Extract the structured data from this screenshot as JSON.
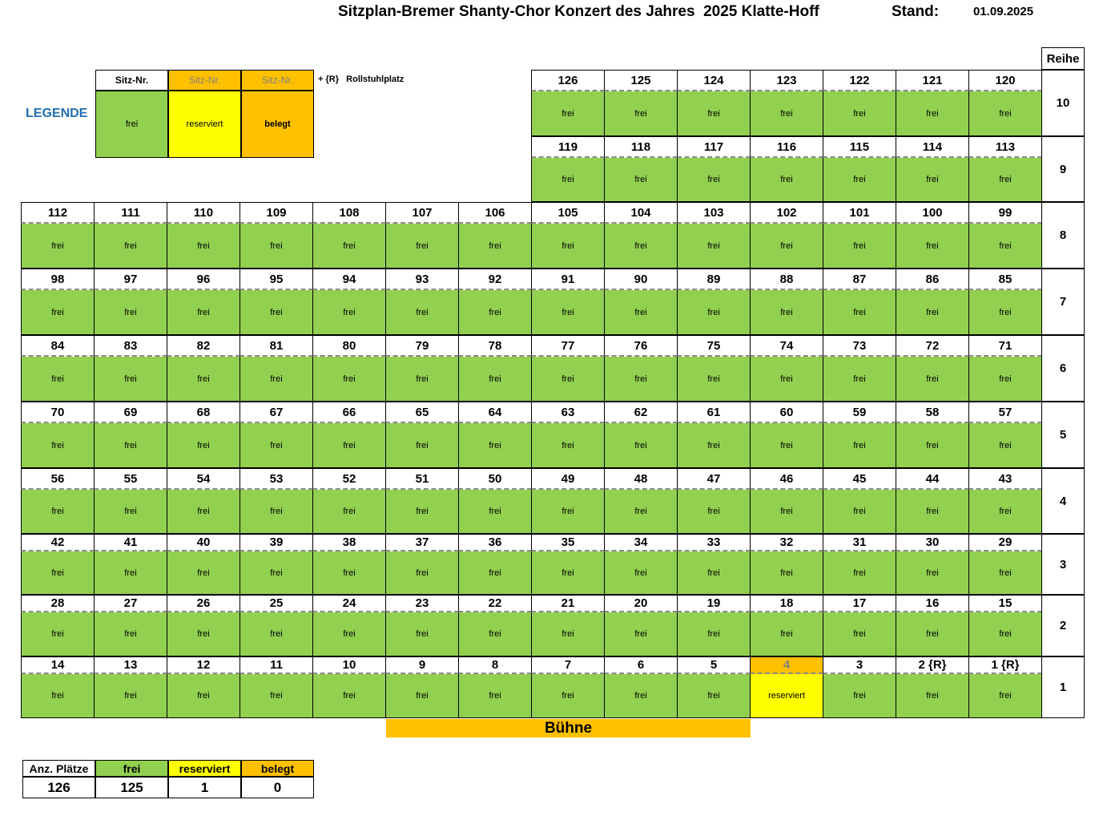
{
  "header": {
    "title": "Sitzplan-Bremer Shanty-Chor Konzert des Jahres  2025 Klatte-Hoff",
    "stand_label": "Stand:",
    "stand_date": "01.09.2025"
  },
  "legend": {
    "label": "LEGENDE",
    "note": "+ {R}   Rollstuhlplatz",
    "items": [
      {
        "header": "Sitz-Nr.",
        "status": "frei",
        "text": "frei"
      },
      {
        "header": "Sitz-Nr.",
        "status": "reserviert",
        "text": "reserviert"
      },
      {
        "header": "Sitz-Nr.",
        "status": "belegt",
        "text": "belegt"
      }
    ]
  },
  "reihe_label": "Reihe",
  "rows": [
    {
      "label": "10",
      "seats": [
        {
          "nr": "126",
          "status": "frei"
        },
        {
          "nr": "125",
          "status": "frei"
        },
        {
          "nr": "124",
          "status": "frei"
        },
        {
          "nr": "123",
          "status": "frei"
        },
        {
          "nr": "122",
          "status": "frei"
        },
        {
          "nr": "121",
          "status": "frei"
        },
        {
          "nr": "120",
          "status": "frei"
        }
      ]
    },
    {
      "label": "9",
      "seats": [
        {
          "nr": "119",
          "status": "frei"
        },
        {
          "nr": "118",
          "status": "frei"
        },
        {
          "nr": "117",
          "status": "frei"
        },
        {
          "nr": "116",
          "status": "frei"
        },
        {
          "nr": "115",
          "status": "frei"
        },
        {
          "nr": "114",
          "status": "frei"
        },
        {
          "nr": "113",
          "status": "frei"
        }
      ]
    },
    {
      "label": "8",
      "seats": [
        {
          "nr": "112",
          "status": "frei"
        },
        {
          "nr": "111",
          "status": "frei"
        },
        {
          "nr": "110",
          "status": "frei"
        },
        {
          "nr": "109",
          "status": "frei"
        },
        {
          "nr": "108",
          "status": "frei"
        },
        {
          "nr": "107",
          "status": "frei"
        },
        {
          "nr": "106",
          "status": "frei"
        },
        {
          "nr": "105",
          "status": "frei"
        },
        {
          "nr": "104",
          "status": "frei"
        },
        {
          "nr": "103",
          "status": "frei"
        },
        {
          "nr": "102",
          "status": "frei"
        },
        {
          "nr": "101",
          "status": "frei"
        },
        {
          "nr": "100",
          "status": "frei"
        },
        {
          "nr": "99",
          "status": "frei"
        }
      ]
    },
    {
      "label": "7",
      "seats": [
        {
          "nr": "98",
          "status": "frei"
        },
        {
          "nr": "97",
          "status": "frei"
        },
        {
          "nr": "96",
          "status": "frei"
        },
        {
          "nr": "95",
          "status": "frei"
        },
        {
          "nr": "94",
          "status": "frei"
        },
        {
          "nr": "93",
          "status": "frei"
        },
        {
          "nr": "92",
          "status": "frei"
        },
        {
          "nr": "91",
          "status": "frei"
        },
        {
          "nr": "90",
          "status": "frei"
        },
        {
          "nr": "89",
          "status": "frei"
        },
        {
          "nr": "88",
          "status": "frei"
        },
        {
          "nr": "87",
          "status": "frei"
        },
        {
          "nr": "86",
          "status": "frei"
        },
        {
          "nr": "85",
          "status": "frei"
        }
      ]
    },
    {
      "label": "6",
      "seats": [
        {
          "nr": "84",
          "status": "frei"
        },
        {
          "nr": "83",
          "status": "frei"
        },
        {
          "nr": "82",
          "status": "frei"
        },
        {
          "nr": "81",
          "status": "frei"
        },
        {
          "nr": "80",
          "status": "frei"
        },
        {
          "nr": "79",
          "status": "frei"
        },
        {
          "nr": "78",
          "status": "frei"
        },
        {
          "nr": "77",
          "status": "frei"
        },
        {
          "nr": "76",
          "status": "frei"
        },
        {
          "nr": "75",
          "status": "frei"
        },
        {
          "nr": "74",
          "status": "frei"
        },
        {
          "nr": "73",
          "status": "frei"
        },
        {
          "nr": "72",
          "status": "frei"
        },
        {
          "nr": "71",
          "status": "frei"
        }
      ]
    },
    {
      "label": "5",
      "seats": [
        {
          "nr": "70",
          "status": "frei"
        },
        {
          "nr": "69",
          "status": "frei"
        },
        {
          "nr": "68",
          "status": "frei"
        },
        {
          "nr": "67",
          "status": "frei"
        },
        {
          "nr": "66",
          "status": "frei"
        },
        {
          "nr": "65",
          "status": "frei"
        },
        {
          "nr": "64",
          "status": "frei"
        },
        {
          "nr": "63",
          "status": "frei"
        },
        {
          "nr": "62",
          "status": "frei"
        },
        {
          "nr": "61",
          "status": "frei"
        },
        {
          "nr": "60",
          "status": "frei"
        },
        {
          "nr": "59",
          "status": "frei"
        },
        {
          "nr": "58",
          "status": "frei"
        },
        {
          "nr": "57",
          "status": "frei"
        }
      ]
    },
    {
      "label": "4",
      "seats": [
        {
          "nr": "56",
          "status": "frei"
        },
        {
          "nr": "55",
          "status": "frei"
        },
        {
          "nr": "54",
          "status": "frei"
        },
        {
          "nr": "53",
          "status": "frei"
        },
        {
          "nr": "52",
          "status": "frei"
        },
        {
          "nr": "51",
          "status": "frei"
        },
        {
          "nr": "50",
          "status": "frei"
        },
        {
          "nr": "49",
          "status": "frei"
        },
        {
          "nr": "48",
          "status": "frei"
        },
        {
          "nr": "47",
          "status": "frei"
        },
        {
          "nr": "46",
          "status": "frei"
        },
        {
          "nr": "45",
          "status": "frei"
        },
        {
          "nr": "44",
          "status": "frei"
        },
        {
          "nr": "43",
          "status": "frei"
        }
      ]
    },
    {
      "label": "3",
      "seats": [
        {
          "nr": "42",
          "status": "frei"
        },
        {
          "nr": "41",
          "status": "frei"
        },
        {
          "nr": "40",
          "status": "frei"
        },
        {
          "nr": "39",
          "status": "frei"
        },
        {
          "nr": "38",
          "status": "frei"
        },
        {
          "nr": "37",
          "status": "frei"
        },
        {
          "nr": "36",
          "status": "frei"
        },
        {
          "nr": "35",
          "status": "frei"
        },
        {
          "nr": "34",
          "status": "frei"
        },
        {
          "nr": "33",
          "status": "frei"
        },
        {
          "nr": "32",
          "status": "frei"
        },
        {
          "nr": "31",
          "status": "frei"
        },
        {
          "nr": "30",
          "status": "frei"
        },
        {
          "nr": "29",
          "status": "frei"
        }
      ]
    },
    {
      "label": "2",
      "seats": [
        {
          "nr": "28",
          "status": "frei"
        },
        {
          "nr": "27",
          "status": "frei"
        },
        {
          "nr": "26",
          "status": "frei"
        },
        {
          "nr": "25",
          "status": "frei"
        },
        {
          "nr": "24",
          "status": "frei"
        },
        {
          "nr": "23",
          "status": "frei"
        },
        {
          "nr": "22",
          "status": "frei"
        },
        {
          "nr": "21",
          "status": "frei"
        },
        {
          "nr": "20",
          "status": "frei"
        },
        {
          "nr": "19",
          "status": "frei"
        },
        {
          "nr": "18",
          "status": "frei"
        },
        {
          "nr": "17",
          "status": "frei"
        },
        {
          "nr": "16",
          "status": "frei"
        },
        {
          "nr": "15",
          "status": "frei"
        }
      ]
    },
    {
      "label": "1",
      "seats": [
        {
          "nr": "14",
          "status": "frei"
        },
        {
          "nr": "13",
          "status": "frei"
        },
        {
          "nr": "12",
          "status": "frei"
        },
        {
          "nr": "11",
          "status": "frei"
        },
        {
          "nr": "10",
          "status": "frei"
        },
        {
          "nr": "9",
          "status": "frei"
        },
        {
          "nr": "8",
          "status": "frei"
        },
        {
          "nr": "7",
          "status": "frei"
        },
        {
          "nr": "6",
          "status": "frei"
        },
        {
          "nr": "5",
          "status": "frei"
        },
        {
          "nr": "4",
          "status": "reserviert"
        },
        {
          "nr": "3",
          "status": "frei"
        },
        {
          "nr": "2 {R}",
          "status": "frei"
        },
        {
          "nr": "1 {R}",
          "status": "frei"
        }
      ]
    }
  ],
  "status_text": {
    "frei": "frei",
    "reserviert": "reserviert",
    "belegt": "belegt"
  },
  "stage_label": "Bühne",
  "summary": {
    "headers": [
      "Anz. Plätze",
      "frei",
      "reserviert",
      "belegt"
    ],
    "values": [
      "126",
      "125",
      "1",
      "0"
    ]
  },
  "colors": {
    "frei": "#92d050",
    "reserviert": "#ffff00",
    "belegt": "#ffc000",
    "legend_text": "#1f6fb2"
  }
}
